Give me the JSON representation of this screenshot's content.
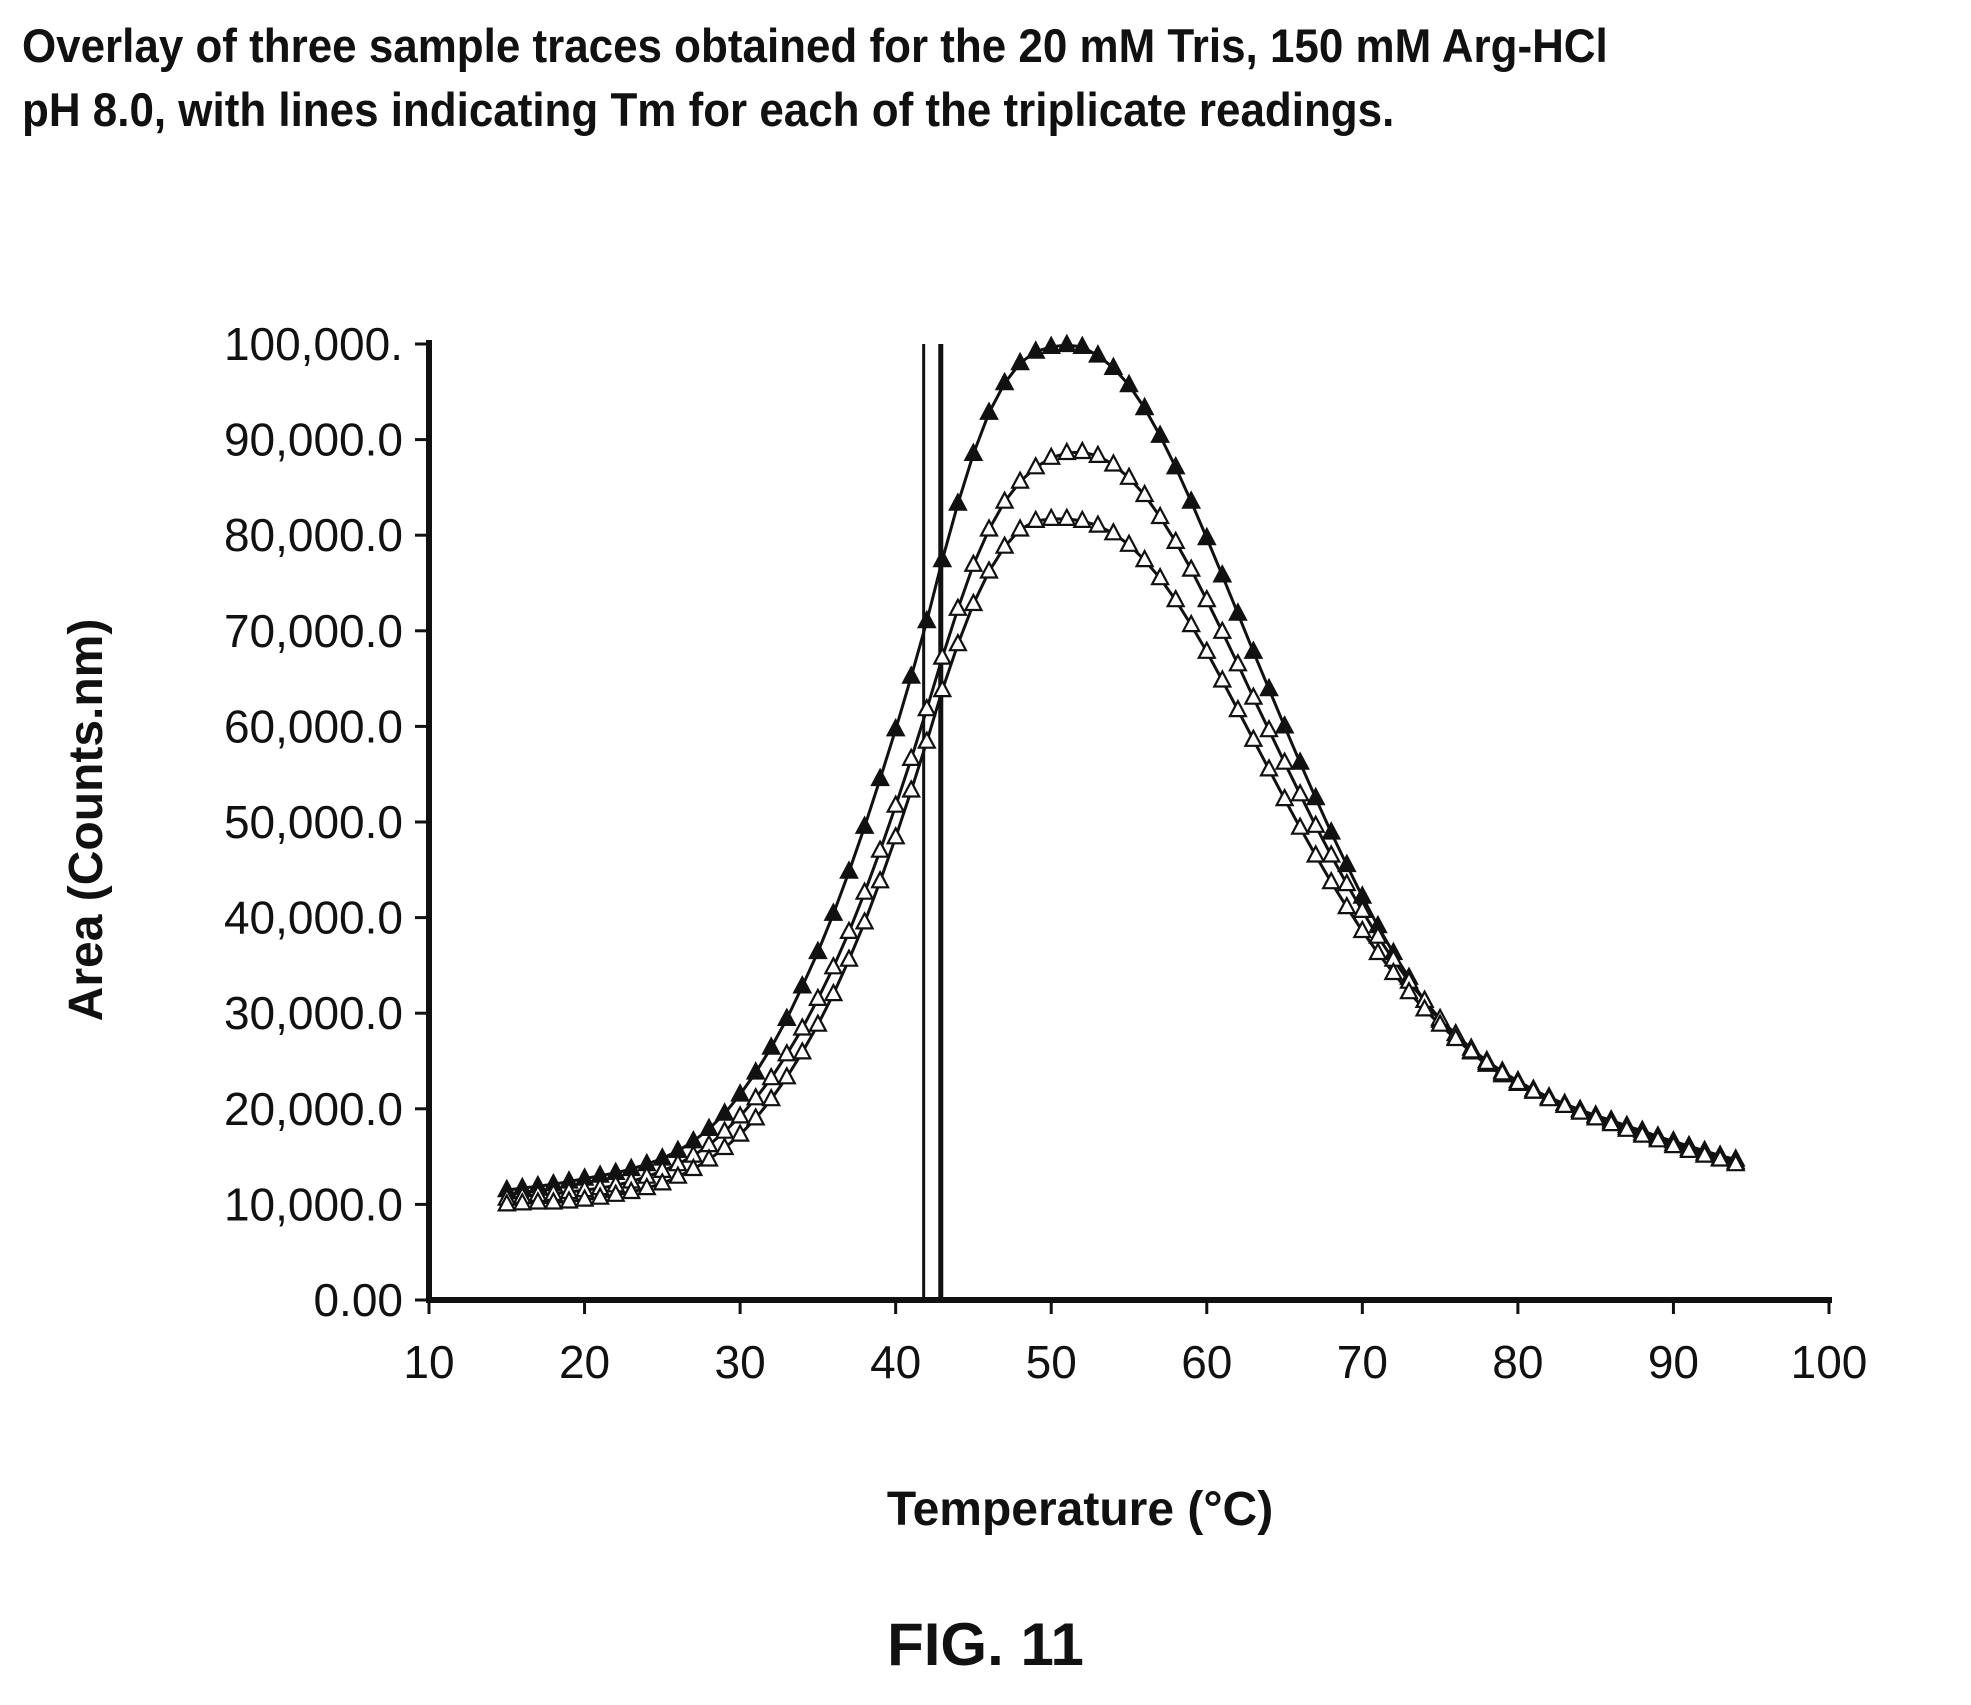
{
  "title_lines": [
    "Overlay of three sample traces obtained for the 20 mM Tris, 150 mM Arg-HCl",
    "pH 8.0, with lines indicating Tm for each of the triplicate readings."
  ],
  "figure_label": "FIG. 11",
  "chart_data": {
    "type": "line",
    "xlabel": "Temperature (°C)",
    "ylabel": "Area (Counts.nm)",
    "xlim": [
      10,
      100
    ],
    "ylim": [
      0,
      100000
    ],
    "x_ticks": [
      10,
      20,
      30,
      40,
      50,
      60,
      70,
      80,
      90,
      100
    ],
    "x_tick_labels": [
      "10",
      "20",
      "30",
      "40",
      "50",
      "60",
      "70",
      "80",
      "90",
      "100"
    ],
    "y_ticks": [
      0,
      10000,
      20000,
      30000,
      40000,
      50000,
      60000,
      70000,
      80000,
      90000,
      100000
    ],
    "y_tick_labels": [
      "0.00",
      "10,000.0",
      "20,000.0",
      "30,000.0",
      "40,000.0",
      "50,000.0",
      "60,000.0",
      "70,000.0",
      "80,000.0",
      "90,000.0",
      "100,000."
    ],
    "grid": false,
    "marker_color": "#111111",
    "tm_lines": [
      41.8,
      42.9
    ],
    "series": [
      {
        "marker": "filled-triangle",
        "x": [
          15,
          16,
          17,
          18,
          19,
          20,
          21,
          22,
          23,
          24,
          25,
          26,
          27,
          28,
          29,
          30,
          31,
          32,
          33,
          34,
          35,
          36,
          37,
          38,
          39,
          40,
          41,
          42,
          43,
          44,
          45,
          46,
          47,
          48,
          49,
          50,
          51,
          52,
          53,
          54,
          55,
          56,
          57,
          58,
          59,
          60,
          61,
          62,
          63,
          64,
          65,
          66,
          67,
          68,
          69,
          70,
          71,
          72,
          73,
          74,
          75,
          76,
          77,
          78,
          79,
          80,
          81,
          82,
          83,
          84,
          85,
          86,
          87,
          88,
          89,
          90,
          91,
          92,
          93,
          94
        ],
        "y": [
          11500,
          11700,
          11900,
          12100,
          12400,
          12700,
          13000,
          13300,
          13700,
          14200,
          14800,
          15600,
          16600,
          17900,
          19500,
          21500,
          23800,
          26400,
          29400,
          32800,
          36400,
          40400,
          44800,
          49500,
          54500,
          59700,
          65200,
          71000,
          77400,
          83300,
          88500,
          92800,
          95900,
          98000,
          99200,
          99700,
          99900,
          99700,
          98800,
          97500,
          95700,
          93300,
          90400,
          87100,
          83500,
          79700,
          75800,
          71800,
          67800,
          63900,
          60000,
          56200,
          52500,
          48900,
          45500,
          42200,
          39100,
          36300,
          33700,
          31300,
          29200,
          27400,
          25900,
          24600,
          23500,
          22600,
          21800,
          21100,
          20500,
          19900,
          19300,
          18800,
          18200,
          17700,
          17100,
          16600,
          16100,
          15600,
          15100,
          14700
        ]
      },
      {
        "marker": "open-triangle",
        "x": [
          15,
          16,
          17,
          18,
          19,
          20,
          21,
          22,
          23,
          24,
          25,
          26,
          27,
          28,
          29,
          30,
          31,
          32,
          33,
          34,
          35,
          36,
          37,
          38,
          39,
          40,
          41,
          42,
          43,
          44,
          45,
          46,
          47,
          48,
          49,
          50,
          51,
          52,
          53,
          54,
          55,
          56,
          57,
          58,
          59,
          60,
          61,
          62,
          63,
          64,
          65,
          66,
          67,
          68,
          69,
          70,
          71,
          72,
          73,
          74,
          75,
          76,
          77,
          78,
          79,
          80,
          81,
          82,
          83,
          84,
          85,
          86,
          87,
          88,
          89,
          90,
          91,
          92,
          93,
          94
        ],
        "y": [
          10600,
          10800,
          11000,
          11100,
          11300,
          11500,
          11700,
          12000,
          12400,
          12900,
          13500,
          14200,
          15100,
          16200,
          17600,
          19200,
          21100,
          23200,
          25700,
          28400,
          31500,
          34800,
          38500,
          42600,
          47000,
          51700,
          56600,
          61800,
          67200,
          72300,
          76900,
          80600,
          83500,
          85600,
          87100,
          88100,
          88600,
          88700,
          88300,
          87400,
          86000,
          84200,
          81900,
          79300,
          76400,
          73200,
          69900,
          66500,
          63000,
          59600,
          56200,
          52900,
          49600,
          46500,
          43500,
          40700,
          38000,
          35600,
          33300,
          31300,
          29400,
          27800,
          26300,
          25000,
          23900,
          22900,
          22000,
          21200,
          20500,
          19800,
          19200,
          18600,
          18000,
          17400,
          16900,
          16300,
          15800,
          15300,
          14800,
          14400
        ]
      },
      {
        "marker": "open-triangle",
        "x": [
          15,
          16,
          17,
          18,
          19,
          20,
          21,
          22,
          23,
          24,
          25,
          26,
          27,
          28,
          29,
          30,
          31,
          32,
          33,
          34,
          35,
          36,
          37,
          38,
          39,
          40,
          41,
          42,
          43,
          44,
          45,
          46,
          47,
          48,
          49,
          50,
          51,
          52,
          53,
          54,
          55,
          56,
          57,
          58,
          59,
          60,
          61,
          62,
          63,
          64,
          65,
          66,
          67,
          68,
          69,
          70,
          71,
          72,
          73,
          74,
          75,
          76,
          77,
          78,
          79,
          80,
          81,
          82,
          83,
          84,
          85,
          86,
          87,
          88,
          89,
          90,
          91,
          92,
          93,
          94
        ],
        "y": [
          10000,
          10100,
          10200,
          10200,
          10300,
          10500,
          10700,
          11000,
          11300,
          11700,
          12200,
          12900,
          13700,
          14700,
          15900,
          17300,
          19000,
          21000,
          23300,
          25900,
          28800,
          32000,
          35600,
          39500,
          43800,
          48400,
          53300,
          58400,
          63800,
          68600,
          72800,
          76200,
          78800,
          80600,
          81500,
          81700,
          81700,
          81500,
          81000,
          80200,
          79000,
          77400,
          75500,
          73200,
          70600,
          67800,
          64800,
          61700,
          58600,
          55500,
          52400,
          49400,
          46500,
          43700,
          41100,
          38600,
          36300,
          34200,
          32200,
          30400,
          28800,
          27300,
          26000,
          24800,
          23700,
          22700,
          21800,
          21000,
          20300,
          19600,
          19000,
          18400,
          17800,
          17200,
          16700,
          16100,
          15600,
          15100,
          14700,
          14200
        ]
      }
    ]
  }
}
